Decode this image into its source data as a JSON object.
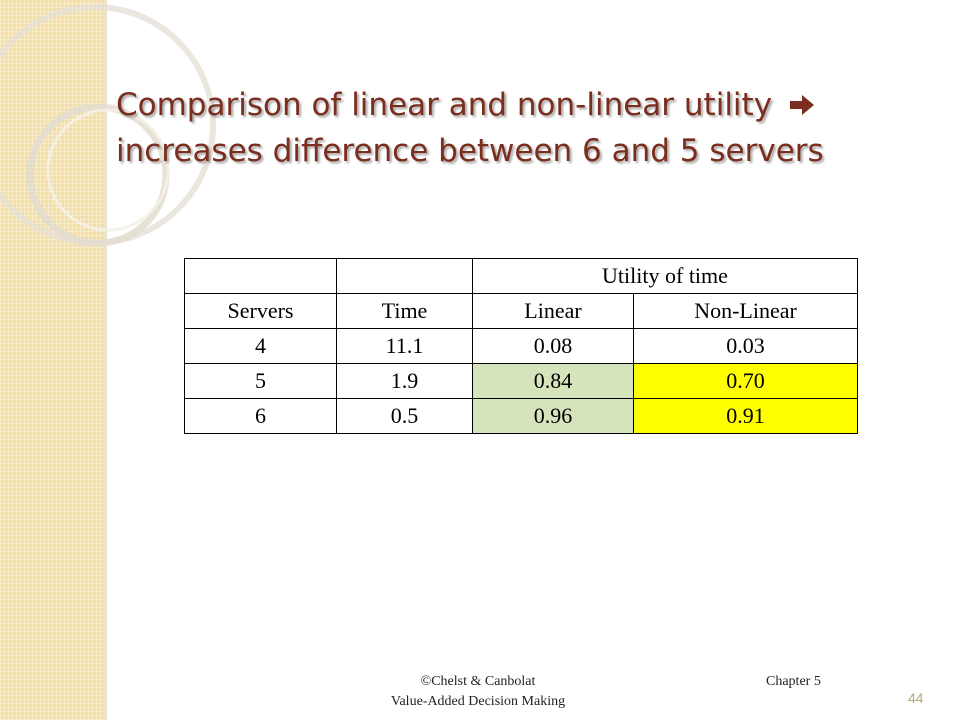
{
  "title": {
    "line1": "Comparison of linear and non-linear utility",
    "arrow_icon": "right-arrow-icon",
    "line2": "increases difference between 6 and 5 servers"
  },
  "table": {
    "group_header": "Utility of time",
    "columns": [
      "Servers",
      "Time",
      "Linear",
      "Non-Linear"
    ],
    "rows": [
      [
        "4",
        "11.1",
        "0.08",
        "0.03"
      ],
      [
        "5",
        "1.9",
        "0.84",
        "0.70"
      ],
      [
        "6",
        "0.5",
        "0.96",
        "0.91"
      ]
    ],
    "highlight_colors": {
      "linear": "#d6e4bc",
      "non_linear": "#ffff00"
    }
  },
  "footer": {
    "copyright": "©Chelst & Canbolat",
    "book": "Value-Added Decision Making",
    "chapter": "Chapter 5",
    "page_number": "44"
  },
  "colors": {
    "title": "#7b2d1e",
    "side_strip": "#f3dfa6"
  }
}
